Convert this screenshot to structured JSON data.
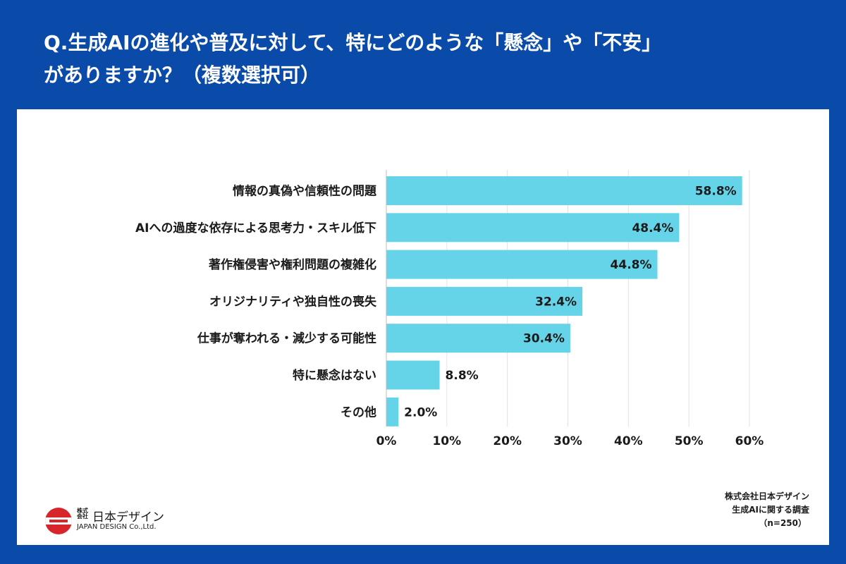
{
  "title_line1": "Q.生成AIの進化や普及に対して、特にどのような「懸念」や「不安」",
  "title_line2": "がありますか？（複数選択可）",
  "chart_data": {
    "type": "bar",
    "orientation": "horizontal",
    "categories": [
      "情報の真偽や信頼性の問題",
      "AIへの過度な依存による思考力・スキル低下",
      "著作権侵害や権利問題の複雑化",
      "オリジナリティや独自性の喪失",
      "仕事が奪われる・減少する可能性",
      "特に懸念はない",
      "その他"
    ],
    "values": [
      58.8,
      48.4,
      44.8,
      32.4,
      30.4,
      8.8,
      2.0
    ],
    "value_labels": [
      "58.8%",
      "48.4%",
      "44.8%",
      "32.4%",
      "30.4%",
      "8.8%",
      "2.0%"
    ],
    "xlim": [
      0,
      60
    ],
    "ticks": [
      0,
      10,
      20,
      30,
      40,
      50,
      60
    ],
    "tick_labels": [
      "0%",
      "10%",
      "20%",
      "30%",
      "40%",
      "50%",
      "60%"
    ],
    "grid": true,
    "bar_color": "#66d4e8"
  },
  "logo": {
    "small": "株式会社",
    "name": "日本デザイン",
    "english": "JAPAN DESIGN Co.,Ltd."
  },
  "source": {
    "line1": "株式会社日本デザイン",
    "line2": "生成AIに関する調査",
    "line3": "（n=250）"
  },
  "colors": {
    "background": "#0a4aa8",
    "panel": "#ffffff",
    "bar": "#66d4e8",
    "logo_red": "#d7262b"
  }
}
